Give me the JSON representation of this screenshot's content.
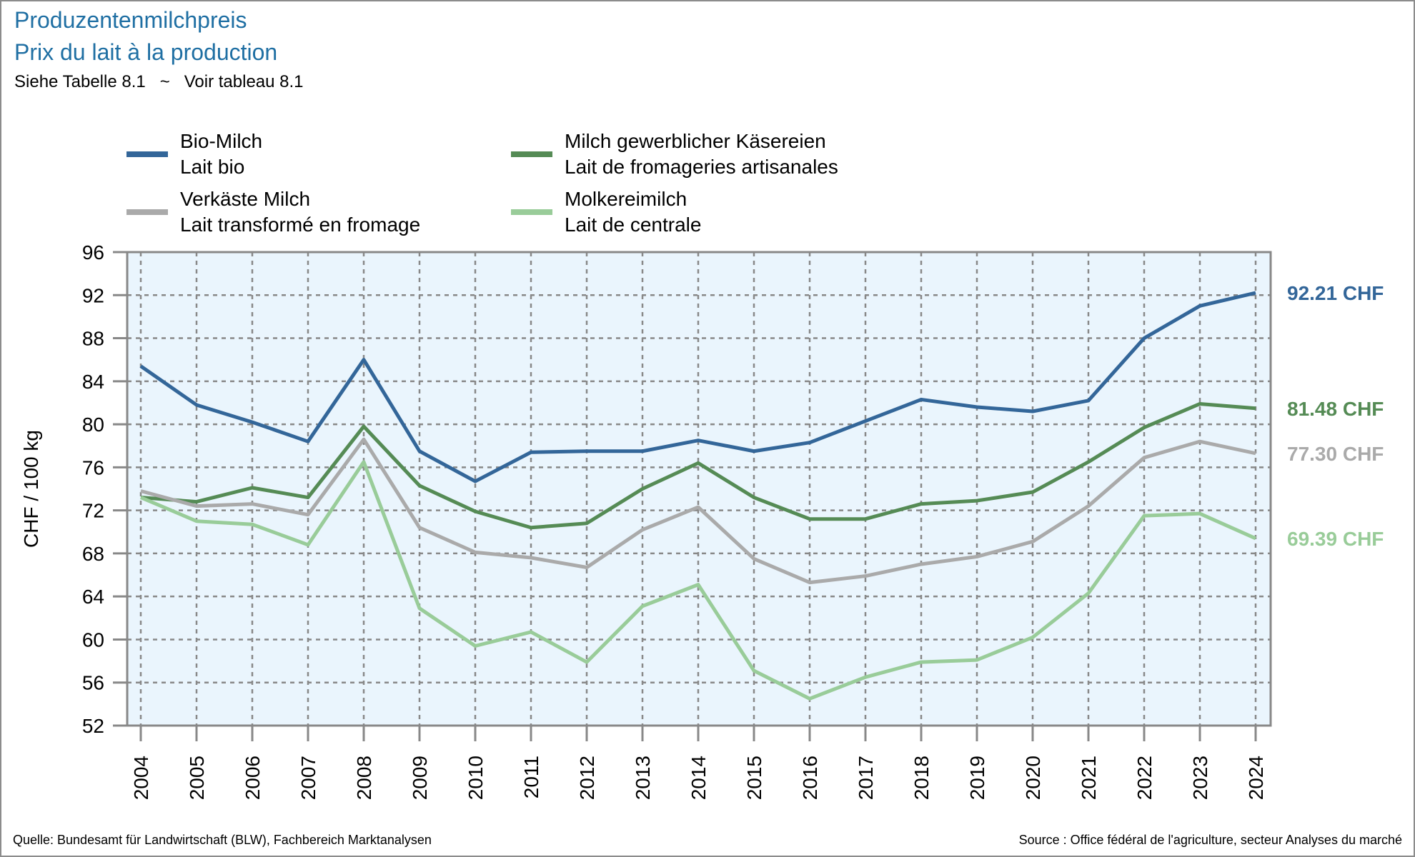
{
  "header": {
    "title_de": "Produzentenmilchpreis",
    "title_fr": "Prix du lait à la production",
    "subtitle": "Siehe Tabelle 8.1   ~   Voir tableau 8.1"
  },
  "footer": {
    "source_de": "Quelle: Bundesamt für Landwirtschaft (BLW), Fachbereich Marktanalysen",
    "source_fr": "Source : Office fédéral de l'agriculture, secteur Analyses du marché"
  },
  "legend": [
    {
      "line1": "Bio-Milch",
      "line2": "Lait bio",
      "color": "#336699"
    },
    {
      "line1": "Milch gewerblicher Käsereien",
      "line2": "Lait de fromageries artisanales",
      "color": "#558b55"
    },
    {
      "line1": "Verkäste Milch",
      "line2": "Lait transformé en fromage",
      "color": "#aaaaaa"
    },
    {
      "line1": "Molkereimilch",
      "line2": "Lait de centrale",
      "color": "#99cc99"
    }
  ],
  "chart_data": {
    "type": "line",
    "title": "Produzentenmilchpreis / Prix du lait à la production",
    "xlabel": "",
    "ylabel": "CHF / 100 kg",
    "x": [
      2004,
      2005,
      2006,
      2007,
      2008,
      2009,
      2010,
      2011,
      2012,
      2013,
      2014,
      2015,
      2016,
      2017,
      2018,
      2019,
      2020,
      2021,
      2022,
      2023,
      2024
    ],
    "ylim": [
      52,
      96
    ],
    "yticks": [
      52,
      56,
      60,
      64,
      68,
      72,
      76,
      80,
      84,
      88,
      92,
      96
    ],
    "grid": true,
    "legend_position": "top",
    "plot_background": "#eaf5fd",
    "series": [
      {
        "name": "Bio-Milch / Lait bio",
        "color": "#336699",
        "end_label": "92.21 CHF",
        "values": [
          85.4,
          81.8,
          80.2,
          78.4,
          86.0,
          77.5,
          74.7,
          77.4,
          77.5,
          77.5,
          78.5,
          77.5,
          78.3,
          80.3,
          82.3,
          81.6,
          81.2,
          82.2,
          88.0,
          91.0,
          92.21
        ]
      },
      {
        "name": "Milch gewerblicher Käsereien / Lait de fromageries artisanales",
        "color": "#558b55",
        "end_label": "81.48 CHF",
        "values": [
          73.2,
          72.8,
          74.1,
          73.2,
          79.8,
          74.3,
          71.9,
          70.4,
          70.8,
          74.0,
          76.4,
          73.2,
          71.2,
          71.2,
          72.6,
          72.9,
          73.7,
          76.5,
          79.7,
          81.9,
          81.48
        ]
      },
      {
        "name": "Verkäste Milch / Lait transformé en fromage",
        "color": "#aaaaaa",
        "end_label": "77.30 CHF",
        "values": [
          73.8,
          72.4,
          72.6,
          71.6,
          78.6,
          70.4,
          68.1,
          67.6,
          66.7,
          70.2,
          72.3,
          67.5,
          65.3,
          65.9,
          67.0,
          67.7,
          69.1,
          72.4,
          76.9,
          78.4,
          77.3
        ]
      },
      {
        "name": "Molkereimilch / Lait de centrale",
        "color": "#99cc99",
        "end_label": "69.39 CHF",
        "values": [
          73.2,
          71.0,
          70.7,
          68.8,
          76.5,
          62.9,
          59.4,
          60.7,
          57.9,
          63.1,
          65.1,
          57.1,
          54.5,
          56.5,
          57.9,
          58.1,
          60.2,
          64.3,
          71.5,
          71.7,
          69.39
        ]
      }
    ]
  }
}
